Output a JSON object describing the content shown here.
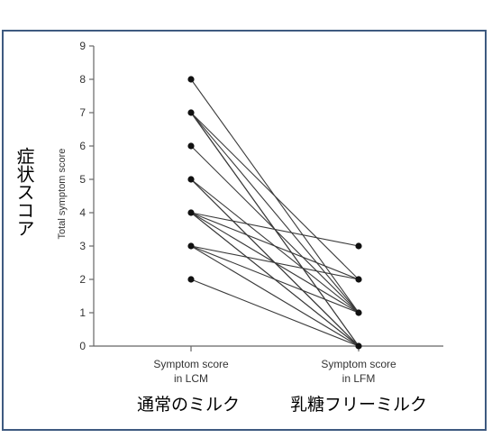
{
  "chart_data": {
    "type": "line",
    "title": "",
    "ylabel": "Total symptom score",
    "ylabel_jp": "症状スコア",
    "categories": [
      "Symptom score in LCM",
      "Symptom score in LFM"
    ],
    "category_lines": [
      [
        "Symptom score",
        "in LCM"
      ],
      [
        "Symptom score",
        "in LFM"
      ]
    ],
    "category_labels_jp": [
      "通常のミルク",
      "乳糖フリーミルク"
    ],
    "ylim": [
      0,
      9
    ],
    "yticks": [
      "0",
      "1",
      "2",
      "3",
      "4",
      "5",
      "6",
      "7",
      "8",
      "9"
    ],
    "grid": false,
    "legend": "none",
    "colors": {
      "line": "#3a3a3a",
      "marker": "#111111",
      "axis": "#666666",
      "frame": "#3e5a80"
    },
    "series": [
      {
        "values": [
          8,
          1
        ]
      },
      {
        "values": [
          7,
          2
        ]
      },
      {
        "values": [
          7,
          1
        ]
      },
      {
        "values": [
          7,
          0
        ]
      },
      {
        "values": [
          7,
          0
        ]
      },
      {
        "values": [
          6,
          1
        ]
      },
      {
        "values": [
          5,
          0
        ]
      },
      {
        "values": [
          5,
          1
        ]
      },
      {
        "values": [
          5,
          0
        ]
      },
      {
        "values": [
          4,
          3
        ]
      },
      {
        "values": [
          4,
          2
        ]
      },
      {
        "values": [
          4,
          1
        ]
      },
      {
        "values": [
          4,
          0
        ]
      },
      {
        "values": [
          4,
          0
        ]
      },
      {
        "values": [
          3,
          2
        ]
      },
      {
        "values": [
          3,
          1
        ]
      },
      {
        "values": [
          3,
          0
        ]
      },
      {
        "values": [
          2,
          0
        ]
      }
    ]
  }
}
